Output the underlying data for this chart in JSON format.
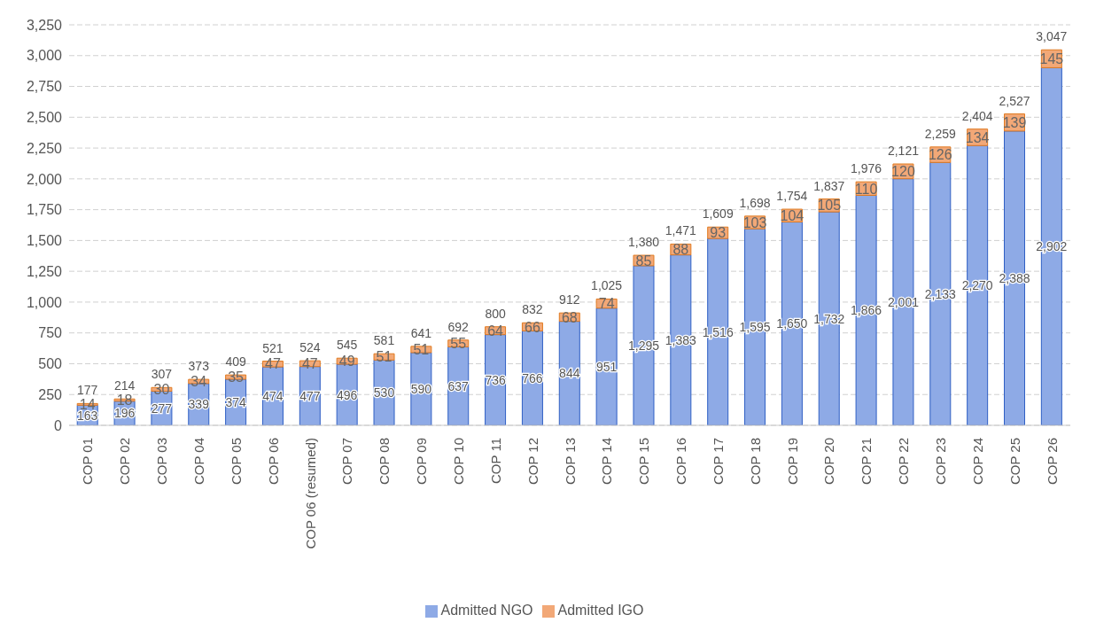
{
  "chart_data": {
    "type": "bar",
    "stacked": true,
    "categories": [
      "COP 01",
      "COP 02",
      "COP 03",
      "COP 04",
      "COP 05",
      "COP 06",
      "COP 06 (resumed)",
      "COP 07",
      "COP 08",
      "COP 09",
      "COP 10",
      "COP 11",
      "COP 12",
      "COP 13",
      "COP 14",
      "COP 15",
      "COP 16",
      "COP 17",
      "COP 18",
      "COP 19",
      "COP 20",
      "COP 21",
      "COP 22",
      "COP 23",
      "COP 24",
      "COP 25",
      "COP 26"
    ],
    "series": [
      {
        "name": "Admitted NGO",
        "color": "#8eaae6",
        "values": [
          163,
          196,
          277,
          339,
          374,
          474,
          477,
          496,
          530,
          590,
          637,
          736,
          766,
          844,
          951,
          1295,
          1383,
          1516,
          1595,
          1650,
          1732,
          1866,
          2001,
          2133,
          2270,
          2388,
          2902
        ],
        "value_labels": [
          "163",
          "196",
          "277",
          "339",
          "374",
          "474",
          "477",
          "496",
          "530",
          "590",
          "637",
          "736",
          "766",
          "844",
          "951",
          "1,295",
          "1,383",
          "1,516",
          "1,595",
          "1,650",
          "1,732",
          "1,866",
          "2,001",
          "2,133",
          "2,270",
          "2,388",
          "2,902"
        ]
      },
      {
        "name": "Admitted IGO",
        "color": "#f2a877",
        "values": [
          14,
          18,
          30,
          34,
          35,
          47,
          47,
          49,
          51,
          51,
          55,
          64,
          66,
          68,
          74,
          85,
          88,
          93,
          103,
          104,
          105,
          110,
          120,
          126,
          134,
          139,
          145
        ]
      }
    ],
    "totals": [
      "177",
      "214",
      "307",
      "373",
      "409",
      "521",
      "524",
      "545",
      "581",
      "641",
      "692",
      "800",
      "832",
      "912",
      "1,025",
      "1,380",
      "1,471",
      "1,609",
      "1,698",
      "1,754",
      "1,837",
      "1,976",
      "2,121",
      "2,259",
      "2,404",
      "2,527",
      "3,047"
    ],
    "data_labels": true,
    "ylim": [
      0,
      3250
    ],
    "yticks": [
      0,
      250,
      500,
      750,
      {
        "value": 1000,
        "label": "1,000"
      },
      {
        "value": 1250,
        "label": "1,250"
      },
      {
        "value": 1500,
        "label": "1,500"
      },
      {
        "value": 1750,
        "label": "1,750"
      },
      {
        "value": 2000,
        "label": "2,000"
      },
      {
        "value": 2250,
        "label": "2,250"
      },
      {
        "value": 2500,
        "label": "2,500"
      },
      {
        "value": 2750,
        "label": "2,750"
      },
      {
        "value": 3000,
        "label": "3,000"
      },
      {
        "value": 3250,
        "label": "3,250"
      }
    ],
    "grid": "y",
    "legend": "bottom"
  }
}
